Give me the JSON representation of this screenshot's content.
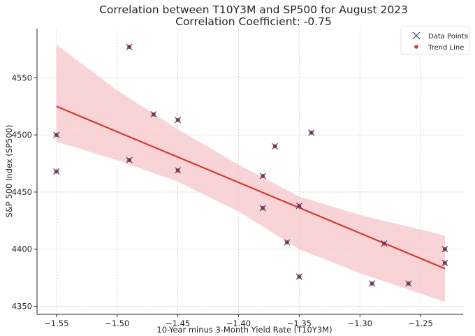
{
  "chart_data": {
    "type": "scatter",
    "title": "Correlation between T10Y3M and SP500 for August 2023",
    "subtitle": "Correlation Coefficient: -0.75",
    "xlabel": "10-Year minus 3-Month Yield Rate (T10Y3M)",
    "ylabel": "S&P 500 Index (SP500)",
    "xlim": [
      -1.566,
      -1.215
    ],
    "ylim": [
      4343,
      4593
    ],
    "xticks": [
      -1.55,
      -1.5,
      -1.45,
      -1.4,
      -1.35,
      -1.3,
      -1.25
    ],
    "xtick_labels": [
      "−1.55",
      "−1.50",
      "−1.45",
      "−1.40",
      "−1.35",
      "−1.30",
      "−1.25"
    ],
    "yticks": [
      4350,
      4400,
      4450,
      4500,
      4550
    ],
    "ytick_labels": [
      "4350",
      "4400",
      "4450",
      "4500",
      "4550"
    ],
    "grid": true,
    "legend_position": "top-right",
    "series": [
      {
        "name": "Data Points",
        "marker": "x",
        "color": "#2b3d7a",
        "points": [
          {
            "x": -1.55,
            "y": 4500
          },
          {
            "x": -1.55,
            "y": 4468
          },
          {
            "x": -1.49,
            "y": 4577
          },
          {
            "x": -1.49,
            "y": 4478
          },
          {
            "x": -1.47,
            "y": 4518
          },
          {
            "x": -1.45,
            "y": 4513
          },
          {
            "x": -1.45,
            "y": 4469
          },
          {
            "x": -1.38,
            "y": 4464
          },
          {
            "x": -1.38,
            "y": 4436
          },
          {
            "x": -1.37,
            "y": 4490
          },
          {
            "x": -1.36,
            "y": 4406
          },
          {
            "x": -1.35,
            "y": 4438
          },
          {
            "x": -1.35,
            "y": 4376
          },
          {
            "x": -1.34,
            "y": 4502
          },
          {
            "x": -1.29,
            "y": 4370
          },
          {
            "x": -1.28,
            "y": 4405
          },
          {
            "x": -1.26,
            "y": 4370
          },
          {
            "x": -1.23,
            "y": 4400
          },
          {
            "x": -1.23,
            "y": 4388
          }
        ]
      },
      {
        "name": "Trend Line",
        "type": "line",
        "color": "#d63a2f",
        "band_color": "#f5c6c8",
        "x": [
          -1.55,
          -1.23
        ],
        "y": [
          4525,
          4383
        ],
        "confidence_band": {
          "x": [
            -1.55,
            -1.5,
            -1.45,
            -1.4,
            -1.35,
            -1.3,
            -1.23
          ],
          "upper": [
            4579,
            4539,
            4505,
            4474,
            4446,
            4430,
            4412
          ],
          "lower": [
            4494,
            4478,
            4459,
            4433,
            4400,
            4379,
            4354
          ]
        }
      }
    ]
  }
}
